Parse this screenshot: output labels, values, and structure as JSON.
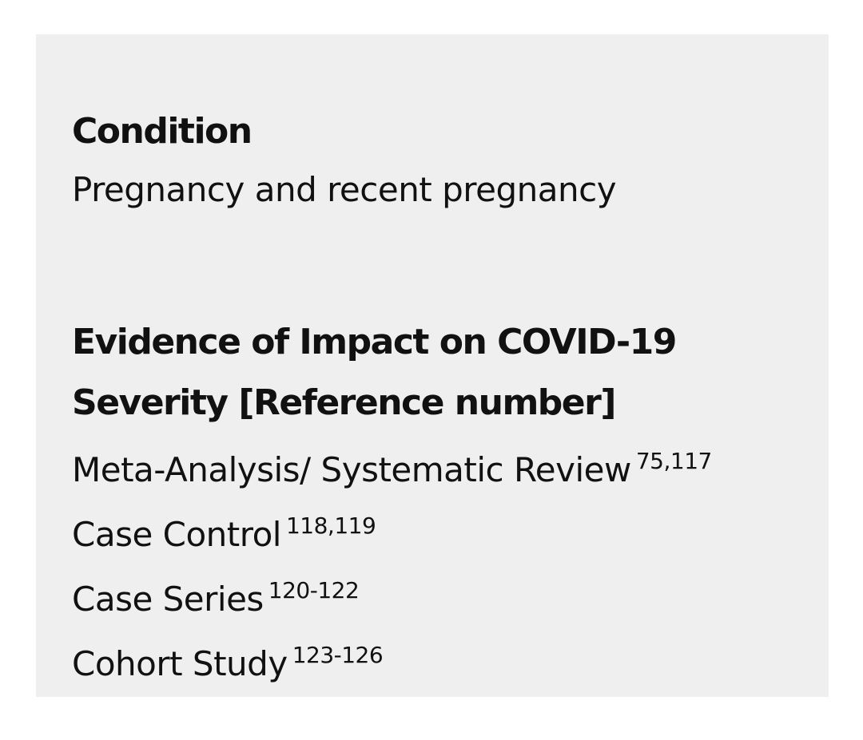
{
  "condition": {
    "heading": "Condition",
    "value": "Pregnancy and recent pregnancy"
  },
  "evidence": {
    "heading": "Evidence of Impact on COVID-19 Severity [Reference number]",
    "items": [
      {
        "label": "Meta-Analysis/ Systematic Review",
        "refs": "75,117"
      },
      {
        "label": "Case Control",
        "refs": "118,119"
      },
      {
        "label": "Case Series",
        "refs": "120-122"
      },
      {
        "label": "Cohort Study",
        "refs": "123-126"
      }
    ]
  }
}
